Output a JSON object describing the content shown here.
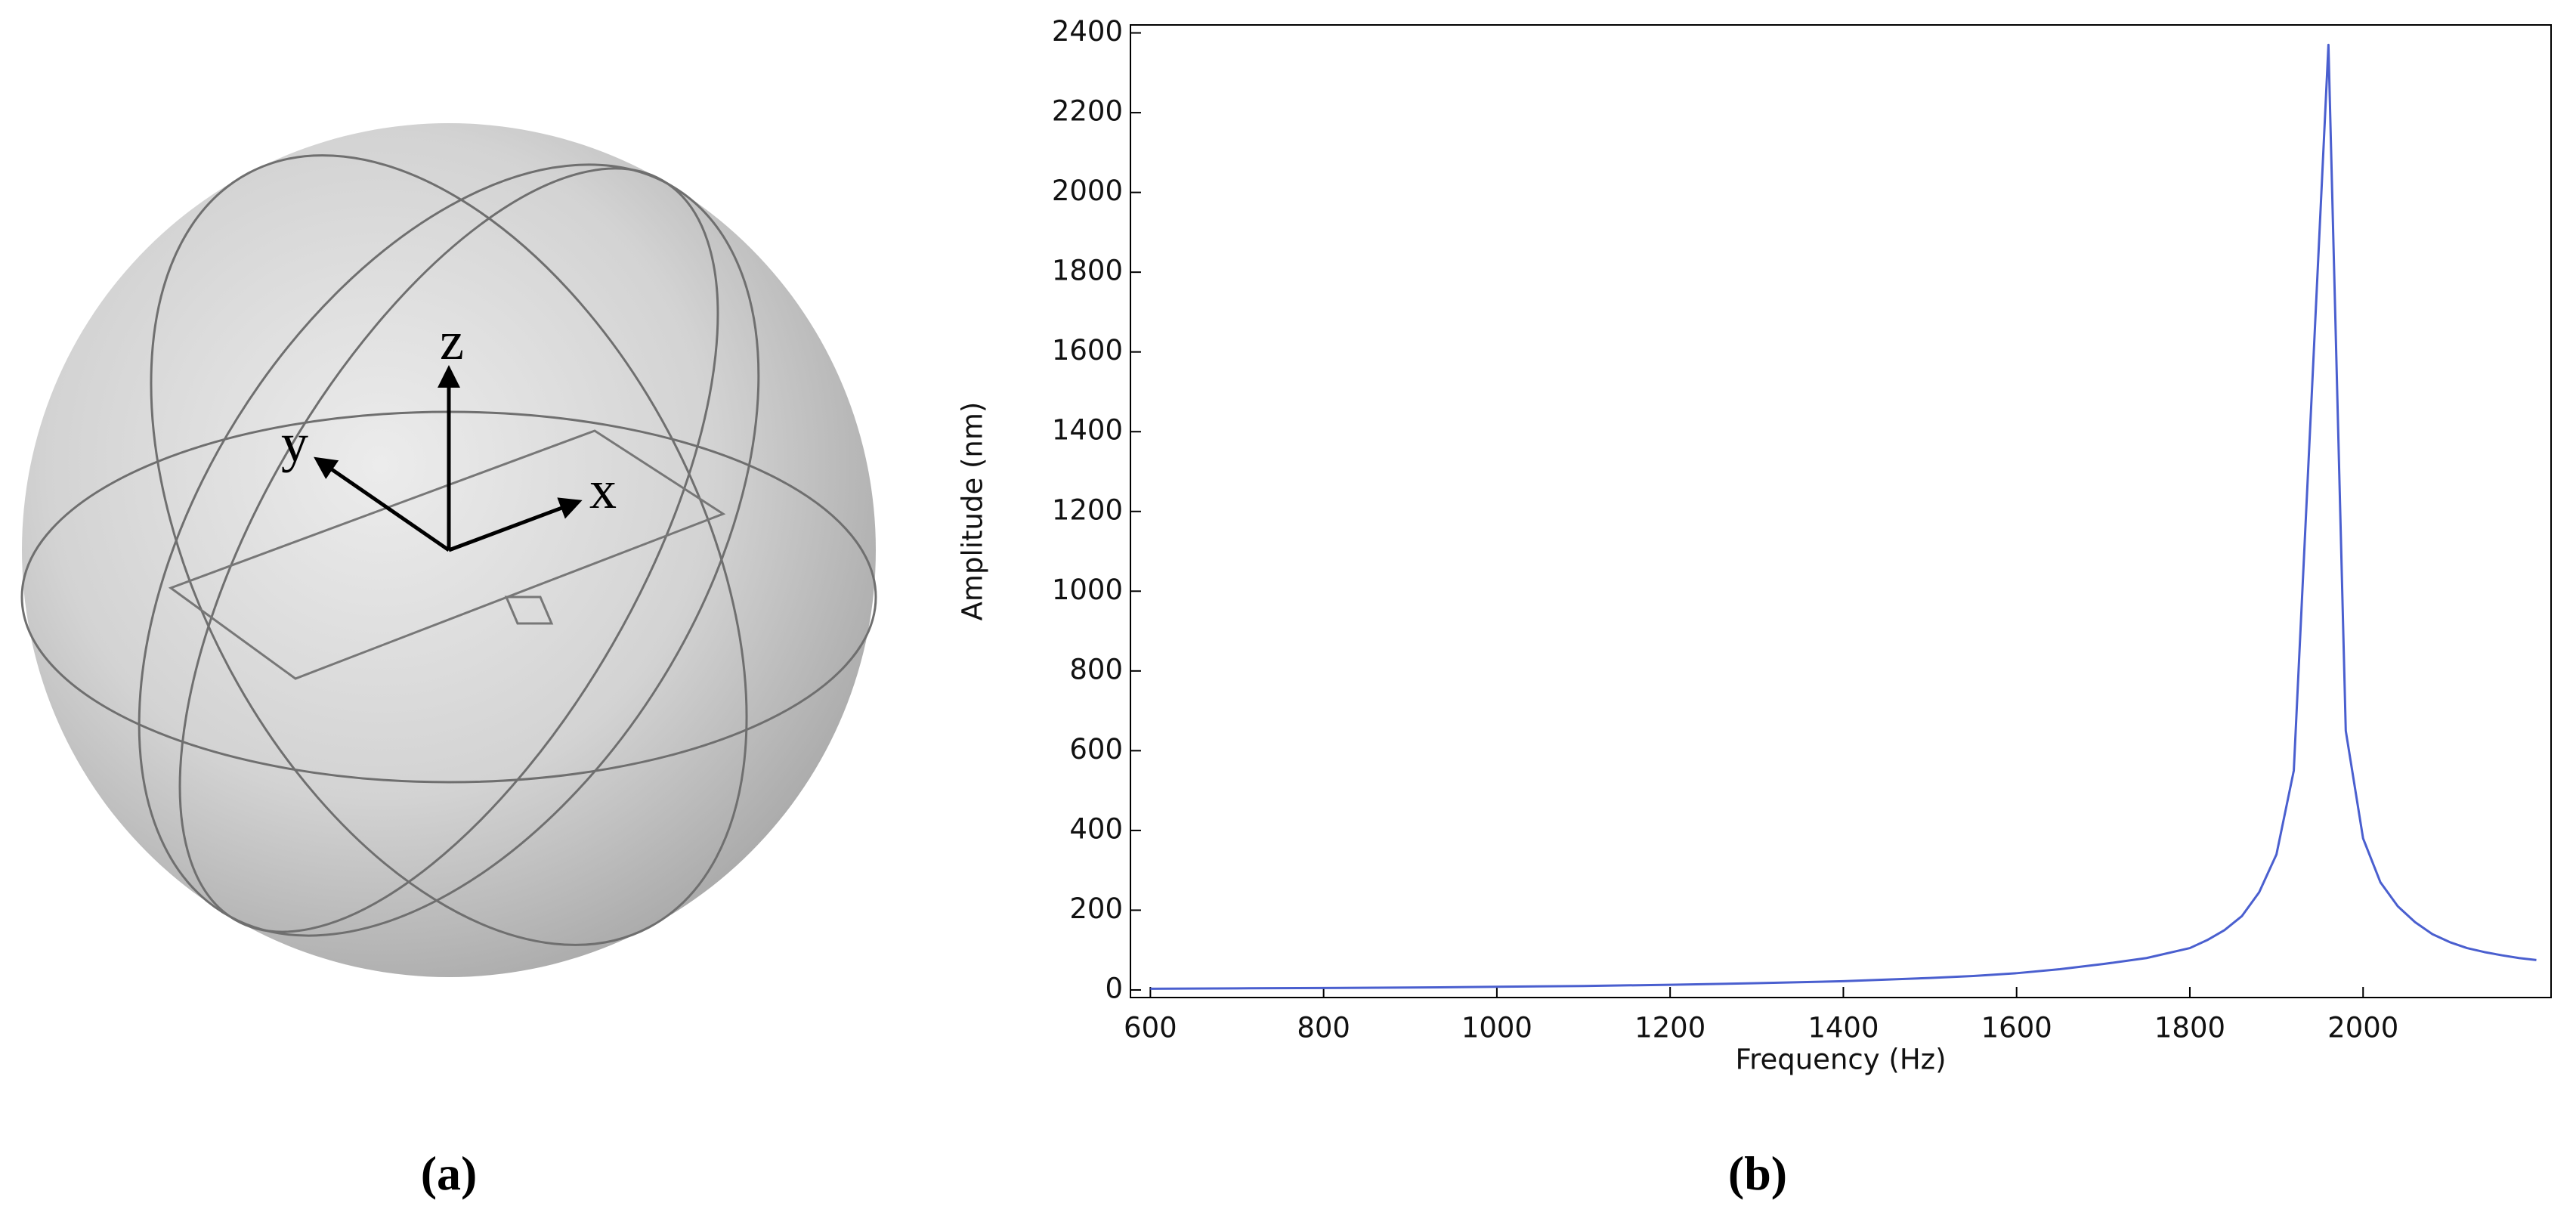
{
  "captions": [
    "(a)",
    "(b)"
  ],
  "diagram": {
    "axis_labels": {
      "z": "z",
      "y": "y",
      "x": "x"
    }
  },
  "chart_data": {
    "type": "line",
    "x_label": "Frequency (Hz)",
    "y_label": "Amplitude (nm)",
    "x": [
      600,
      700,
      800,
      900,
      1000,
      1100,
      1200,
      1300,
      1400,
      1450,
      1500,
      1550,
      1600,
      1650,
      1700,
      1750,
      1800,
      1820,
      1840,
      1860,
      1880,
      1900,
      1920,
      1960,
      1980,
      2000,
      2020,
      2040,
      2060,
      2080,
      2100,
      2120,
      2140,
      2160,
      2180,
      2200
    ],
    "series": [
      {
        "color": "#4a5fcf",
        "values": [
          3,
          4,
          5,
          6,
          8,
          10,
          13,
          17,
          22,
          26,
          30,
          35,
          42,
          52,
          65,
          80,
          105,
          125,
          150,
          185,
          245,
          340,
          550,
          2370,
          650,
          380,
          270,
          210,
          170,
          140,
          120,
          105,
          95,
          87,
          80,
          75
        ]
      }
    ],
    "xlim": [
      577,
      2217
    ],
    "ylim": [
      -19,
      2420
    ],
    "xticks": [
      600,
      800,
      1000,
      1200,
      1400,
      1600,
      1800,
      2000
    ],
    "yticks": [
      0,
      200,
      400,
      600,
      800,
      1000,
      1200,
      1400,
      1600,
      1800,
      2000,
      2200,
      2400
    ],
    "grid": false
  }
}
